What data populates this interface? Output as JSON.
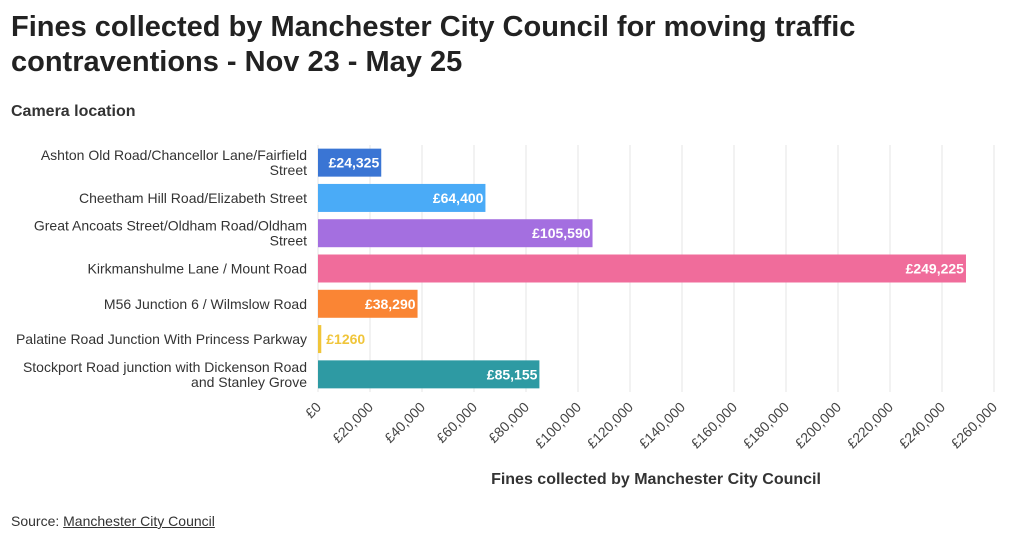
{
  "chart_data": {
    "type": "bar",
    "orientation": "horizontal",
    "title": "Fines collected by Manchester City Council for moving traffic contraventions - Nov 23 - May 25",
    "ylabel": "Camera location",
    "xlabel": "Fines collected by Manchester City Council",
    "categories": [
      "Ashton Old Road/Chancellor Lane/Fairfield Street",
      "Cheetham Hill Road/Elizabeth Street",
      "Great Ancoats Street/Oldham Road/Oldham Street",
      "Kirkmanshulme Lane / Mount Road",
      "M56 Junction 6 / Wilmslow Road",
      "Palatine Road Junction With Princess Parkway",
      "Stockport Road junction with Dickenson Road and Stanley Grove"
    ],
    "values": [
      24325,
      64400,
      105590,
      249225,
      38290,
      1260,
      85155
    ],
    "value_labels": [
      "£24,325",
      "£64,400",
      "£105,590",
      "£249,225",
      "£38,290",
      "£1260",
      "£85,155"
    ],
    "colors": [
      "#3a75d4",
      "#4aabf7",
      "#a46fe0",
      "#f06c9b",
      "#fa8534",
      "#f0c53a",
      "#2e9aa3"
    ],
    "xlim": [
      0,
      260000
    ],
    "xticks": [
      0,
      20000,
      40000,
      60000,
      80000,
      100000,
      120000,
      140000,
      160000,
      180000,
      200000,
      220000,
      240000,
      260000
    ],
    "xtick_labels": [
      "£0",
      "£20,000",
      "£40,000",
      "£60,000",
      "£80,000",
      "£100,000",
      "£120,000",
      "£140,000",
      "£160,000",
      "£180,000",
      "£200,000",
      "£220,000",
      "£240,000",
      "£260,000"
    ],
    "grid": true
  },
  "source": {
    "prefix": "Source: ",
    "link_text": "Manchester City Council"
  }
}
